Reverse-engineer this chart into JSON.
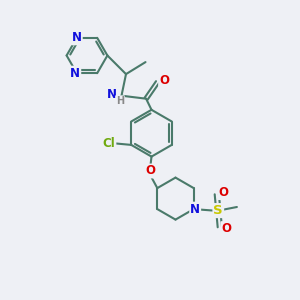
{
  "background_color": "#eef0f5",
  "bond_color": "#4a7a6a",
  "bond_width": 1.5,
  "atom_colors": {
    "N": "#1010dd",
    "O": "#dd0000",
    "Cl": "#70aa10",
    "S": "#c8c800",
    "H": "#888888"
  },
  "font_size": 8.5,
  "font_size_small": 7.0
}
